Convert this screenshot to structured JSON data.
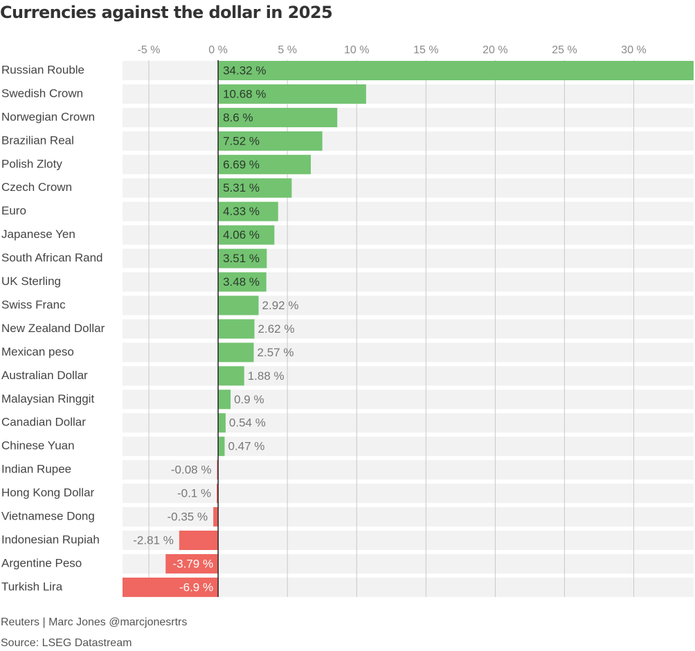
{
  "chart_data": {
    "type": "bar",
    "orientation": "horizontal",
    "title": "Currencies against the dollar in 2025",
    "xlabel": "",
    "ylabel": "",
    "x_ticks": [
      "-5 %",
      "0 %",
      "5 %",
      "10 %",
      "15 %",
      "20 %",
      "25 %",
      "30 %"
    ],
    "xlim": [
      -6.9,
      34.32
    ],
    "grid": true,
    "legend": "none",
    "colors": {
      "positive": "#73c371",
      "negative": "#ef6760",
      "row_band": "#f2f2f2",
      "gridline": "#c8c8c8",
      "zero_line": "#222222"
    },
    "categories": [
      "Russian Rouble",
      "Swedish Crown",
      "Norwegian Crown",
      "Brazilian Real",
      "Polish Zloty",
      "Czech Crown",
      "Euro",
      "Japanese Yen",
      "South African Rand",
      "UK Sterling",
      "Swiss Franc",
      "New Zealand Dollar",
      "Mexican peso",
      "Australian Dollar",
      "Malaysian Ringgit",
      "Canadian Dollar",
      "Chinese Yuan",
      "Indian Rupee",
      "Hong Kong Dollar",
      "Vietnamese Dong",
      "Indonesian Rupiah",
      "Argentine Peso",
      "Turkish Lira"
    ],
    "values": [
      34.32,
      10.68,
      8.6,
      7.52,
      6.69,
      5.31,
      4.33,
      4.06,
      3.51,
      3.48,
      2.92,
      2.62,
      2.57,
      1.88,
      0.9,
      0.54,
      0.47,
      -0.08,
      -0.1,
      -0.35,
      -2.81,
      -3.79,
      -6.9
    ],
    "value_labels": [
      "34.32 %",
      "10.68 %",
      "8.6 %",
      "7.52 %",
      "6.69 %",
      "5.31 %",
      "4.33 %",
      "4.06 %",
      "3.51 %",
      "3.48 %",
      "2.92 %",
      "2.62 %",
      "2.57 %",
      "1.88 %",
      "0.9 %",
      "0.54 %",
      "0.47 %",
      "-0.08 %",
      "-0.1 %",
      "-0.35 %",
      "-2.81 %",
      "-3.79 %",
      "-6.9 %"
    ]
  },
  "footer": {
    "credit": "Reuters | Marc Jones @marcjonesrtrs",
    "source": "Source: LSEG Datastream"
  }
}
